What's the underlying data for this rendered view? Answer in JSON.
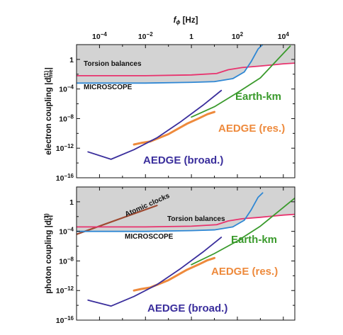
{
  "chart_data": [
    {
      "type": "line",
      "panel": "top",
      "xlabel_main": "f",
      "xlabel_sub": "ϕ",
      "xlabel_unit": " [Hz]",
      "ylabel_main": "electron coupling |d",
      "ylabel_sub": "me",
      "ylabel_sup": "(1)",
      "ylabel_end": "|",
      "x_log": true,
      "y_log": true,
      "xlim_exp": [
        -5,
        4.5
      ],
      "ylim_exp": [
        -16,
        2
      ],
      "x_ticks": [
        {
          "mant": "10",
          "exp": "−4"
        },
        {
          "mant": "10",
          "exp": "−2"
        },
        {
          "mant": "1",
          "exp": ""
        },
        {
          "mant": "10",
          "exp": "2"
        },
        {
          "mant": "10",
          "exp": "4"
        }
      ],
      "y_ticks": [
        {
          "mant": "1",
          "exp": ""
        },
        {
          "mant": "10",
          "exp": "−4"
        },
        {
          "mant": "10",
          "exp": "−8"
        },
        {
          "mant": "10",
          "exp": "−12"
        },
        {
          "mant": "10",
          "exp": "−16"
        }
      ],
      "series": [
        {
          "name": "Torsion balances",
          "color": "#e8336e",
          "x_exp": [
            -5,
            -2,
            0,
            1.1,
            1.6,
            2.2,
            3,
            4,
            4.5
          ],
          "y_exp": [
            -2.2,
            -2.2,
            -2.1,
            -1.9,
            -1.4,
            -1.1,
            -0.9,
            -0.6,
            -0.5
          ]
        },
        {
          "name": "MICROSCOPE",
          "color": "#2e87d4",
          "x_exp": [
            -5,
            -2,
            0,
            1,
            1.8,
            2.3,
            2.6,
            2.9,
            3.1
          ],
          "y_exp": [
            -3.2,
            -3.2,
            -3.1,
            -3,
            -2.6,
            -1.7,
            -0.3,
            1.4,
            2
          ]
        },
        {
          "name": "Earth-km",
          "color": "#3a9a2c",
          "x_exp": [
            0,
            1,
            2,
            3,
            4.3
          ],
          "y_exp": [
            -7.8,
            -6.4,
            -4.5,
            -2.5,
            1.8
          ]
        },
        {
          "name": "AEDGE (res.)",
          "color": "#ee8a3c",
          "x_exp": [
            -2.5,
            -2.2,
            -1.8,
            -1.4,
            -1,
            -0.6,
            -0.2,
            0.3,
            0.7,
            1
          ],
          "y_exp": [
            -11.5,
            -11.3,
            -11.1,
            -10.6,
            -10.1,
            -9.4,
            -8.7,
            -8.0,
            -7.4,
            -7.1
          ]
        },
        {
          "name": "AEDGE (broad.)",
          "color": "#3a2e9c",
          "x_exp": [
            -4.5,
            -3.5,
            -2.5,
            -1.5,
            -0.5,
            0.5,
            1.3
          ],
          "y_exp": [
            -12.5,
            -13.5,
            -12.2,
            -10.6,
            -8.5,
            -6.2,
            -4.2
          ]
        }
      ]
    },
    {
      "type": "line",
      "panel": "bottom",
      "xlabel_main": "",
      "ylabel_main": "photon coupling |d",
      "ylabel_sub": "e",
      "ylabel_sup": "(1)",
      "ylabel_end": "|",
      "x_log": true,
      "y_log": true,
      "xlim_exp": [
        -5,
        4.5
      ],
      "ylim_exp": [
        -16,
        2
      ],
      "y_ticks": [
        {
          "mant": "1",
          "exp": ""
        },
        {
          "mant": "10",
          "exp": "−4"
        },
        {
          "mant": "10",
          "exp": "−8"
        },
        {
          "mant": "10",
          "exp": "−12"
        },
        {
          "mant": "10",
          "exp": "−16"
        }
      ],
      "series": [
        {
          "name": "Atomic clocks",
          "color": "#9e4a32",
          "x_exp": [
            -5,
            -1.5
          ],
          "y_exp": [
            -4.4,
            -0.5
          ]
        },
        {
          "name": "Torsion balances",
          "color": "#e8336e",
          "x_exp": [
            -5,
            -2,
            0,
            1.1,
            1.6,
            2.2,
            3,
            4,
            4.5
          ],
          "y_exp": [
            -3.4,
            -3.4,
            -3.3,
            -3.1,
            -2.6,
            -2.3,
            -2.1,
            -1.8,
            -1.7
          ]
        },
        {
          "name": "MICROSCOPE",
          "color": "#2e87d4",
          "x_exp": [
            -5,
            -2,
            0,
            1,
            1.8,
            2.3,
            2.6,
            2.9,
            3.1
          ],
          "y_exp": [
            -4.0,
            -4.0,
            -3.9,
            -3.8,
            -3.4,
            -2.5,
            -1.1,
            0.6,
            1.2
          ]
        },
        {
          "name": "Earth-km",
          "color": "#3a9a2c",
          "x_exp": [
            0,
            1,
            2,
            3,
            4.5
          ],
          "y_exp": [
            -8.5,
            -7.0,
            -5.3,
            -3.3,
            0.5
          ]
        },
        {
          "name": "AEDGE (res.)",
          "color": "#ee8a3c",
          "x_exp": [
            -2.5,
            -2.2,
            -1.8,
            -1.4,
            -1,
            -0.6,
            -0.2,
            0.3,
            0.7,
            1
          ],
          "y_exp": [
            -12.0,
            -11.8,
            -11.6,
            -11.1,
            -10.6,
            -9.9,
            -9.2,
            -8.5,
            -7.9,
            -7.6
          ]
        },
        {
          "name": "AEDGE (broad.)",
          "color": "#3a2e9c",
          "x_exp": [
            -4.5,
            -3.5,
            -2.5,
            -1.5,
            -0.5,
            0.5,
            1.3
          ],
          "y_exp": [
            -13.3,
            -14.1,
            -12.8,
            -11.2,
            -9.1,
            -6.8,
            -4.8
          ]
        }
      ]
    }
  ]
}
